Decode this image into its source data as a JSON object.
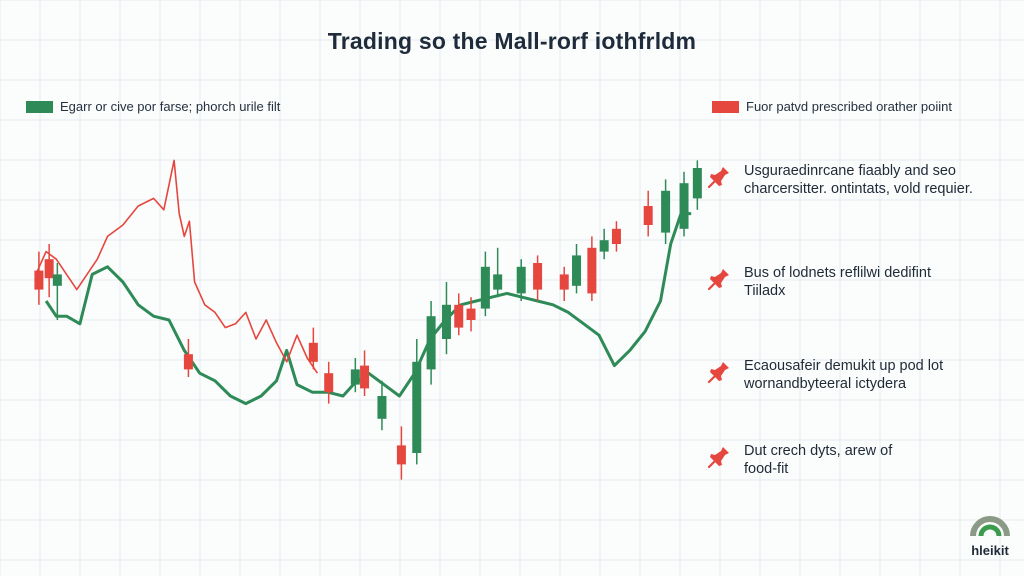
{
  "chart_data": {
    "type": "candlestick",
    "title": "Trading so the Mall-rorf iothfrldm",
    "legend": [
      {
        "label": "Egarr or cive por farse; phorch urile filt",
        "color": "#2e8b57"
      },
      {
        "label": "Fuor patvd prescribed orather poiint",
        "color": "#e5473f"
      }
    ],
    "grid": true,
    "xlim": [
      0,
      100
    ],
    "ylim": [
      0,
      100
    ],
    "candles": [
      {
        "x": 3.8,
        "open": 58,
        "close": 63,
        "high": 68,
        "low": 54,
        "dir": "down"
      },
      {
        "x": 4.8,
        "open": 61,
        "close": 66,
        "high": 70,
        "low": 56,
        "dir": "down"
      },
      {
        "x": 5.6,
        "open": 59,
        "close": 62,
        "high": 65,
        "low": 50,
        "dir": "up"
      },
      {
        "x": 18.4,
        "open": 37,
        "close": 41,
        "high": 45,
        "low": 35,
        "dir": "down"
      },
      {
        "x": 30.6,
        "open": 39,
        "close": 44,
        "high": 48,
        "low": 37,
        "dir": "down"
      },
      {
        "x": 32.1,
        "open": 31,
        "close": 36,
        "high": 39,
        "low": 28,
        "dir": "down"
      },
      {
        "x": 34.7,
        "open": 33,
        "close": 37,
        "high": 40,
        "low": 31,
        "dir": "up"
      },
      {
        "x": 35.6,
        "open": 32,
        "close": 38,
        "high": 42,
        "low": 30,
        "dir": "down"
      },
      {
        "x": 37.3,
        "open": 24,
        "close": 30,
        "high": 34,
        "low": 21,
        "dir": "up"
      },
      {
        "x": 39.2,
        "open": 12,
        "close": 17,
        "high": 22,
        "low": 8,
        "dir": "down"
      },
      {
        "x": 40.7,
        "open": 15,
        "close": 39,
        "high": 45,
        "low": 12,
        "dir": "up"
      },
      {
        "x": 42.1,
        "open": 37,
        "close": 51,
        "high": 55,
        "low": 33,
        "dir": "up"
      },
      {
        "x": 43.6,
        "open": 45,
        "close": 54,
        "high": 60,
        "low": 41,
        "dir": "up"
      },
      {
        "x": 44.8,
        "open": 48,
        "close": 54,
        "high": 57,
        "low": 46,
        "dir": "down"
      },
      {
        "x": 46.0,
        "open": 50,
        "close": 53,
        "high": 56,
        "low": 47,
        "dir": "down"
      },
      {
        "x": 47.4,
        "open": 53,
        "close": 64,
        "high": 68,
        "low": 51,
        "dir": "up"
      },
      {
        "x": 48.6,
        "open": 58,
        "close": 62,
        "high": 69,
        "low": 56,
        "dir": "up"
      },
      {
        "x": 50.9,
        "open": 57,
        "close": 64,
        "high": 66,
        "low": 55,
        "dir": "up"
      },
      {
        "x": 52.5,
        "open": 58,
        "close": 65,
        "high": 67,
        "low": 55,
        "dir": "down"
      },
      {
        "x": 55.1,
        "open": 58,
        "close": 62,
        "high": 64,
        "low": 55,
        "dir": "down"
      },
      {
        "x": 56.3,
        "open": 59,
        "close": 67,
        "high": 70,
        "low": 57,
        "dir": "up"
      },
      {
        "x": 57.8,
        "open": 57,
        "close": 69,
        "high": 72,
        "low": 55,
        "dir": "down"
      },
      {
        "x": 59.0,
        "open": 68,
        "close": 71,
        "high": 74,
        "low": 66,
        "dir": "up"
      },
      {
        "x": 60.2,
        "open": 70,
        "close": 74,
        "high": 76,
        "low": 68,
        "dir": "down"
      },
      {
        "x": 63.3,
        "open": 75,
        "close": 80,
        "high": 84,
        "low": 72,
        "dir": "down"
      },
      {
        "x": 65.0,
        "open": 73,
        "close": 84,
        "high": 87,
        "low": 70,
        "dir": "up"
      },
      {
        "x": 66.8,
        "open": 74,
        "close": 86,
        "high": 89,
        "low": 72,
        "dir": "up"
      },
      {
        "x": 68.1,
        "open": 82,
        "close": 90,
        "high": 92,
        "low": 79,
        "dir": "up"
      }
    ],
    "series": [
      {
        "name": "Egarr or cive por farse; phorch urile filt",
        "color": "#2e8b57",
        "x": [
          4.5,
          5.5,
          6.5,
          7.8,
          9.0,
          10.5,
          12.0,
          13.5,
          15.0,
          16.5,
          18.0,
          19.5,
          21.0,
          22.5,
          24.0,
          25.5,
          27.0,
          28.0,
          29.0,
          30.5,
          32.0,
          33.5,
          34.5,
          36.0,
          37.5,
          39.0,
          40.5,
          42.0,
          43.5,
          45.0,
          46.5,
          48.0,
          49.5,
          51.0,
          52.5,
          54.0,
          55.5,
          57.0,
          58.5,
          60.0,
          61.5,
          63.0,
          64.5,
          65.5,
          66.5,
          67.5
        ],
        "y": [
          55,
          51,
          51,
          49,
          62,
          64,
          60,
          54,
          51,
          50,
          42,
          36,
          34,
          30,
          28,
          30,
          34,
          42,
          33,
          31,
          31,
          30,
          33,
          36,
          33,
          30,
          36,
          45,
          50,
          54,
          55,
          56,
          57,
          56,
          55,
          54,
          52,
          49,
          46,
          38,
          42,
          47,
          55,
          70,
          78,
          78
        ]
      },
      {
        "name": "Fuor patvd prescribed orather poiint",
        "color": "#e5473f",
        "x": [
          3.5,
          4.5,
          5.5,
          6.5,
          7.5,
          8.5,
          9.5,
          10.5,
          12.0,
          13.5,
          15.0,
          16.0,
          17.0,
          17.5,
          18.0,
          18.5,
          19.0,
          20.0,
          21.0,
          22.0,
          23.0,
          24.0,
          25.0,
          26.0,
          27.0,
          28.0,
          29.0,
          30.0,
          31.0
        ],
        "y": [
          62,
          68,
          66,
          62,
          58,
          62,
          66,
          72,
          75,
          80,
          82,
          79,
          92,
          78,
          72,
          76,
          60,
          54,
          52,
          48,
          49,
          52,
          45,
          50,
          44,
          39,
          46,
          40,
          36
        ]
      }
    ],
    "annotations": [
      {
        "text": "Usguraedinrcane fiaably and seo\ncharcersitter. ontintats, vold requier.",
        "icon": "pin-icon"
      },
      {
        "text": "Bus of lodnets reflilwi dedifint\nTiiladx",
        "icon": "pin-icon"
      },
      {
        "text": "Ecaousafeir demukit up pod lot\nwornandbyteeral ictydera",
        "icon": "pin-icon"
      },
      {
        "text": "Dut crech dyts, arew of\nfood-fit",
        "icon": "pin-icon"
      }
    ]
  },
  "logo": {
    "text": "hleikit"
  },
  "colors": {
    "green": "#2e8b57",
    "red": "#e5473f",
    "grid": "#e6ebef"
  }
}
